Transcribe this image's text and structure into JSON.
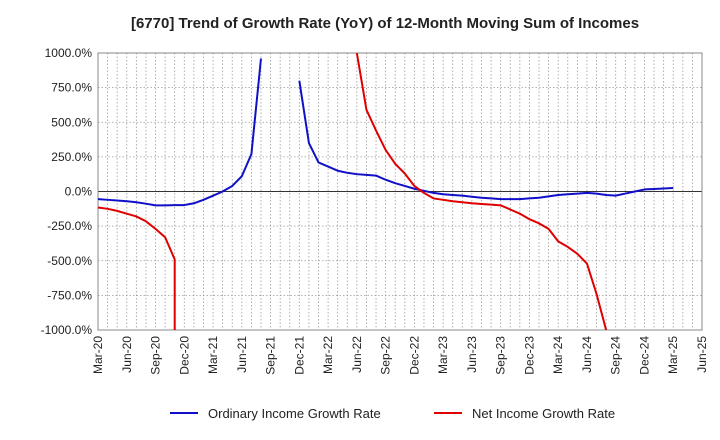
{
  "chart_data": {
    "type": "line",
    "title": "[6770]  Trend of Growth Rate (YoY) of 12-Month Moving Sum of Incomes",
    "xlabel": "",
    "ylabel": "",
    "x_tick_labels": [
      "Mar-20",
      "Jun-20",
      "Sep-20",
      "Dec-20",
      "Mar-21",
      "Jun-21",
      "Sep-21",
      "Dec-21",
      "Mar-22",
      "Jun-22",
      "Sep-22",
      "Dec-22",
      "Mar-23",
      "Jun-23",
      "Sep-23",
      "Dec-23",
      "Mar-24",
      "Jun-24",
      "Sep-24",
      "Dec-24",
      "Mar-25",
      "Jun-25"
    ],
    "y_tick_values": [
      1000,
      750,
      500,
      250,
      0,
      -250,
      -500,
      -750,
      -1000
    ],
    "y_tick_labels": [
      "1000.0%",
      "750.0%",
      "500.0%",
      "250.0%",
      "0.0%",
      "-250.0%",
      "-500.0%",
      "-750.0%",
      "-1000.0%"
    ],
    "ylim": [
      -1000,
      1000
    ],
    "grid": true,
    "legend_position": "bottom",
    "series": [
      {
        "name": "Ordinary Income Growth Rate",
        "color": "#1010c8",
        "segments": [
          [
            [
              "2020-03",
              -55
            ],
            [
              "2020-04",
              -60
            ],
            [
              "2020-05",
              -65
            ],
            [
              "2020-06",
              -70
            ],
            [
              "2020-07",
              -78
            ],
            [
              "2020-08",
              -88
            ],
            [
              "2020-09",
              -100
            ],
            [
              "2020-10",
              -100
            ],
            [
              "2020-11",
              -98
            ],
            [
              "2020-12",
              -98
            ],
            [
              "2021-01",
              -85
            ],
            [
              "2021-02",
              -60
            ],
            [
              "2021-03",
              -30
            ],
            [
              "2021-04",
              0
            ],
            [
              "2021-05",
              40
            ],
            [
              "2021-06",
              110
            ],
            [
              "2021-07",
              270
            ],
            [
              "2021-08",
              960
            ]
          ],
          [
            [
              "2021-12",
              800
            ],
            [
              "2022-01",
              350
            ],
            [
              "2022-02",
              210
            ],
            [
              "2022-03",
              180
            ],
            [
              "2022-04",
              150
            ],
            [
              "2022-05",
              135
            ],
            [
              "2022-06",
              125
            ],
            [
              "2022-07",
              120
            ],
            [
              "2022-08",
              115
            ],
            [
              "2022-09",
              85
            ],
            [
              "2022-10",
              60
            ],
            [
              "2022-11",
              40
            ],
            [
              "2022-12",
              20
            ],
            [
              "2023-01",
              5
            ],
            [
              "2023-02",
              -10
            ],
            [
              "2023-03",
              -20
            ],
            [
              "2023-04",
              -25
            ],
            [
              "2023-05",
              -30
            ],
            [
              "2023-06",
              -38
            ],
            [
              "2023-07",
              -45
            ],
            [
              "2023-08",
              -50
            ],
            [
              "2023-09",
              -55
            ],
            [
              "2023-10",
              -55
            ],
            [
              "2023-11",
              -55
            ],
            [
              "2023-12",
              -50
            ],
            [
              "2024-01",
              -45
            ],
            [
              "2024-02",
              -35
            ],
            [
              "2024-03",
              -25
            ],
            [
              "2024-04",
              -20
            ],
            [
              "2024-05",
              -15
            ],
            [
              "2024-06",
              -10
            ],
            [
              "2024-07",
              -15
            ],
            [
              "2024-08",
              -25
            ],
            [
              "2024-09",
              -30
            ],
            [
              "2024-10",
              -15
            ],
            [
              "2024-11",
              0
            ],
            [
              "2024-12",
              15
            ],
            [
              "2025-01",
              18
            ],
            [
              "2025-02",
              22
            ],
            [
              "2025-03",
              25
            ]
          ]
        ]
      },
      {
        "name": "Net Income Growth Rate",
        "color": "#e00000",
        "segments": [
          [
            [
              "2020-03",
              -115
            ],
            [
              "2020-04",
              -125
            ],
            [
              "2020-05",
              -140
            ],
            [
              "2020-06",
              -160
            ],
            [
              "2020-07",
              -180
            ],
            [
              "2020-08",
              -215
            ],
            [
              "2020-09",
              -270
            ],
            [
              "2020-10",
              -330
            ],
            [
              "2020-11",
              -490
            ],
            [
              "2020-11",
              -1000
            ]
          ],
          [
            [
              "2022-06",
              1000
            ],
            [
              "2022-07",
              590
            ],
            [
              "2022-08",
              440
            ],
            [
              "2022-09",
              300
            ],
            [
              "2022-10",
              200
            ],
            [
              "2022-11",
              130
            ],
            [
              "2022-12",
              40
            ],
            [
              "2023-01",
              -10
            ],
            [
              "2023-02",
              -50
            ],
            [
              "2023-03",
              -60
            ],
            [
              "2023-04",
              -70
            ],
            [
              "2023-05",
              -78
            ],
            [
              "2023-06",
              -85
            ],
            [
              "2023-07",
              -90
            ],
            [
              "2023-08",
              -95
            ],
            [
              "2023-09",
              -100
            ],
            [
              "2023-10",
              -130
            ],
            [
              "2023-11",
              -160
            ],
            [
              "2023-12",
              -200
            ],
            [
              "2024-01",
              -230
            ],
            [
              "2024-02",
              -270
            ],
            [
              "2024-03",
              -360
            ],
            [
              "2024-04",
              -400
            ],
            [
              "2024-05",
              -450
            ],
            [
              "2024-06",
              -520
            ],
            [
              "2024-07",
              -740
            ],
            [
              "2024-08",
              -1000
            ]
          ]
        ]
      }
    ]
  }
}
